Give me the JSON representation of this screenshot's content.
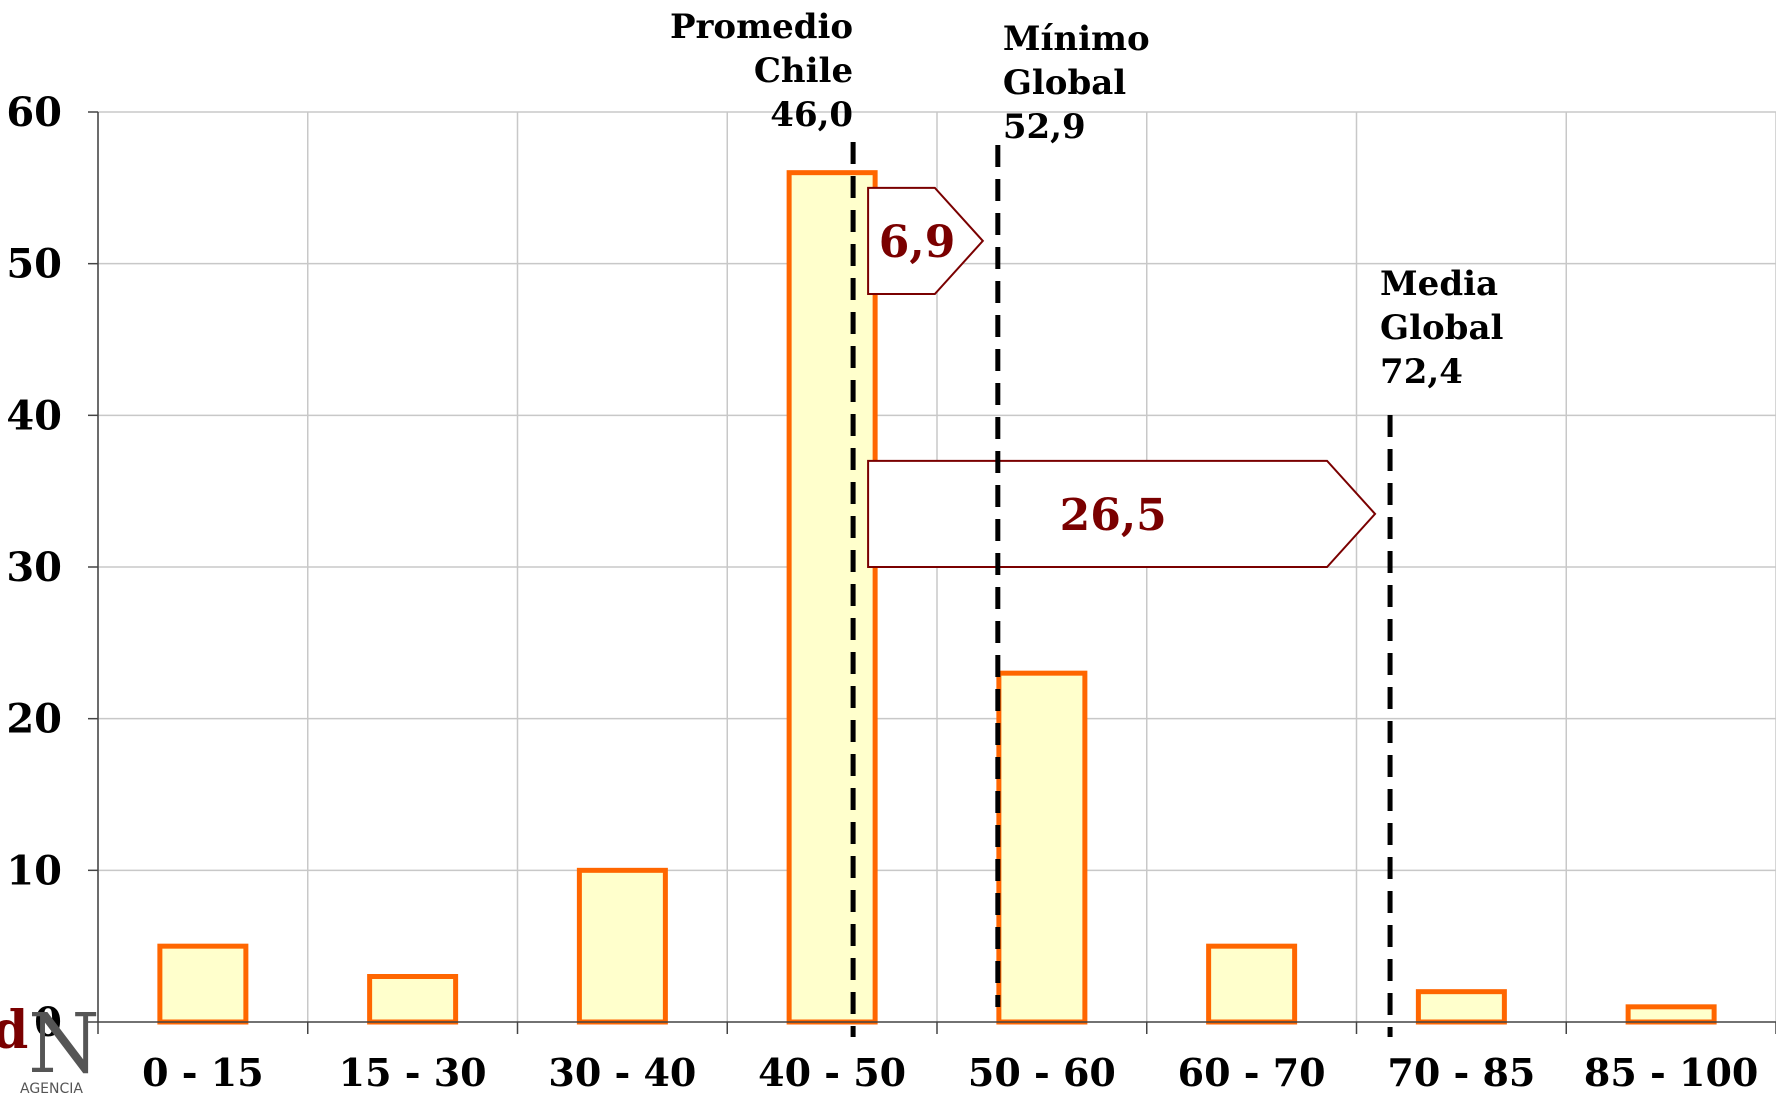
{
  "chart_data": {
    "type": "bar",
    "title": "",
    "xlabel": "",
    "ylabel": "",
    "ylim": [
      0,
      60
    ],
    "yticks": [
      0,
      10,
      20,
      30,
      40,
      50,
      60
    ],
    "grid": true,
    "categories": [
      "0 - 15",
      "15 - 30",
      "30 - 40",
      "40 - 50",
      "50 - 60",
      "60 - 70",
      "70 - 85",
      "85 - 100"
    ],
    "values": [
      5,
      3,
      10,
      56,
      23,
      5,
      2,
      1
    ],
    "bar_fill": "#ffffcc",
    "bar_stroke": "#ff6600",
    "reference_lines": [
      {
        "label_lines": [
          "Promedio",
          "Chile",
          "46,0"
        ],
        "value": 46.0
      },
      {
        "label_lines": [
          "Mínimo",
          "Global",
          "52,9"
        ],
        "value": 52.9
      },
      {
        "label_lines": [
          "Media",
          "Global",
          "72,4"
        ],
        "value": 72.4
      }
    ],
    "gap_arrows": [
      {
        "label": "6,9",
        "from": 46.0,
        "to": 52.9,
        "y_top": 55,
        "y_bottom": 48
      },
      {
        "label": "26,5",
        "from": 46.0,
        "to": 72.4,
        "y_top": 37,
        "y_bottom": 30
      }
    ],
    "annotation_color": "#7a0000"
  },
  "logo": {
    "letters": "d",
    "big_letter": "N",
    "caption": "AGENCIA"
  }
}
